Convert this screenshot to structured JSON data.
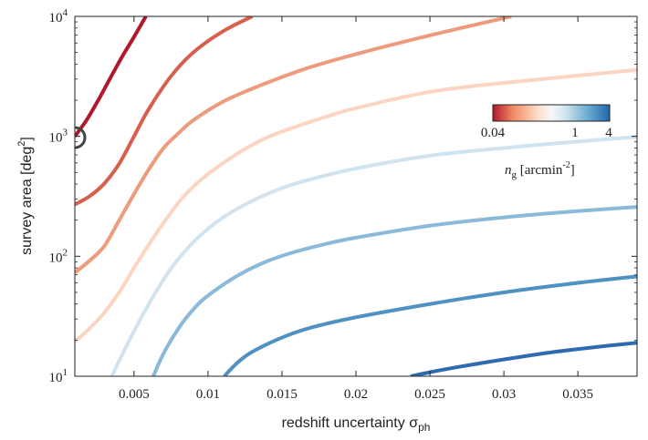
{
  "chart_data": {
    "type": "line",
    "xlabel": "redshift uncertainty",
    "xlabel_symbol": "σ",
    "xlabel_sub": "ph",
    "ylabel": "survey area [deg",
    "ylabel_sup": "2",
    "ylabel_tail": "]",
    "xlim": [
      0.001,
      0.039
    ],
    "ylim": [
      10,
      10000
    ],
    "yscale": "log",
    "grid": false,
    "x_ticks": [
      0.005,
      0.01,
      0.015,
      0.02,
      0.025,
      0.03,
      0.035
    ],
    "x_tick_labels": [
      "0.005",
      "0.01",
      "0.015",
      "0.02",
      "0.025",
      "0.03",
      "0.035"
    ],
    "y_ticks": [
      10,
      100,
      1000,
      10000
    ],
    "y_tick_base": "10",
    "y_tick_exponents": [
      "1",
      "2",
      "3",
      "4"
    ],
    "colorbar": {
      "label_italic": "n",
      "label_sub": "g",
      "label_unit": " [arcmin",
      "label_sup": "-2",
      "label_close": "]",
      "tick_labels": [
        "0.04",
        "1",
        "4"
      ],
      "scale": "log",
      "range": [
        0.04,
        4
      ],
      "colors": [
        "#b2182b",
        "#ef8a62",
        "#fddbc7",
        "#f7f7f7",
        "#d1e5f0",
        "#67a9cf",
        "#2166ac"
      ]
    },
    "series": [
      {
        "color": "#b2182b",
        "x": [
          0.001,
          0.0018,
          0.0026,
          0.0034,
          0.0042,
          0.005,
          0.0058
        ],
        "y": [
          1000,
          1370,
          2020,
          3070,
          4620,
          6740,
          10000
        ]
      },
      {
        "color": "#d6604d",
        "x": [
          0.001,
          0.002,
          0.003,
          0.004,
          0.005,
          0.006,
          0.0075,
          0.009,
          0.011,
          0.013
        ],
        "y": [
          270,
          317,
          405,
          592,
          1000,
          1690,
          3170,
          5000,
          7500,
          10000
        ]
      },
      {
        "color": "#ec9c7d",
        "x": [
          0.001,
          0.002,
          0.003,
          0.004,
          0.005,
          0.006,
          0.007,
          0.008,
          0.009,
          0.011,
          0.013,
          0.015,
          0.017,
          0.02,
          0.025,
          0.0305
        ],
        "y": [
          73,
          92,
          122,
          200,
          330,
          530,
          800,
          1060,
          1360,
          1940,
          2500,
          3120,
          3800,
          4850,
          6950,
          10000
        ]
      },
      {
        "color": "#fbd5c2",
        "x": [
          0.001,
          0.002,
          0.003,
          0.004,
          0.005,
          0.006,
          0.007,
          0.008,
          0.009,
          0.01,
          0.012,
          0.014,
          0.016,
          0.018,
          0.02,
          0.025,
          0.03,
          0.039
        ],
        "y": [
          19.5,
          25,
          34,
          50,
          80,
          125,
          190,
          280,
          380,
          485,
          720,
          980,
          1210,
          1460,
          1720,
          2350,
          2790,
          3580
        ]
      },
      {
        "color": "#cfe3f0",
        "x": [
          0.0035,
          0.0045,
          0.0055,
          0.0065,
          0.0075,
          0.0085,
          0.0095,
          0.011,
          0.013,
          0.015,
          0.017,
          0.02,
          0.025,
          0.03,
          0.035,
          0.039
        ],
        "y": [
          10,
          18,
          31,
          51,
          79,
          112,
          150,
          210,
          290,
          370,
          440,
          540,
          690,
          800,
          905,
          990
        ]
      },
      {
        "color": "#8ab9d9",
        "x": [
          0.0063,
          0.007,
          0.008,
          0.009,
          0.01,
          0.012,
          0.014,
          0.016,
          0.018,
          0.02,
          0.025,
          0.03,
          0.035,
          0.039
        ],
        "y": [
          10,
          15.5,
          25,
          36,
          47,
          69,
          91,
          110,
          127,
          143,
          180,
          211,
          238,
          258
        ]
      },
      {
        "color": "#4f91c2",
        "x": [
          0.0111,
          0.012,
          0.013,
          0.015,
          0.017,
          0.02,
          0.025,
          0.03,
          0.035,
          0.039
        ],
        "y": [
          10,
          13,
          16,
          21,
          25.5,
          31,
          40,
          50,
          60,
          68
        ]
      },
      {
        "color": "#2d6aaf",
        "x": [
          0.0237,
          0.025,
          0.027,
          0.03,
          0.033,
          0.036,
          0.039
        ],
        "y": [
          10,
          10.8,
          12,
          13.8,
          15.7,
          17.4,
          19
        ]
      }
    ]
  }
}
